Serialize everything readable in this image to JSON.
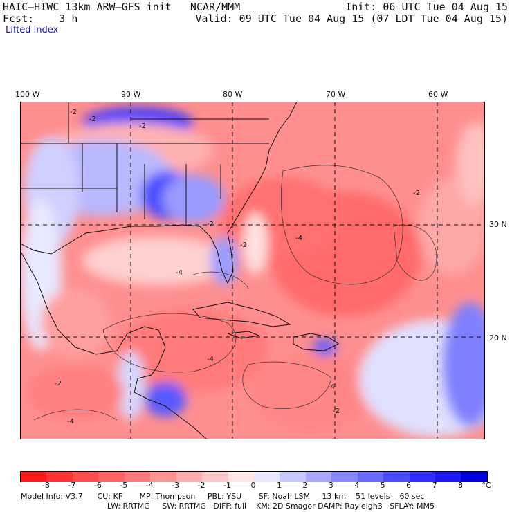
{
  "header": {
    "model_title": "HAIC–HIWC 13km ARW–GFS init   NCAR/MMM",
    "init_time": "Init: 06 UTC Tue 04 Aug 15",
    "forecast": "Fcst:    3 h",
    "valid_time": "Valid: 09 UTC Tue 04 Aug 15 (07 LDT Tue 04 Aug 15)",
    "field_name": "Lifted index"
  },
  "map": {
    "longitude_labels": [
      "100 W",
      "90 W",
      "80 W",
      "70 W",
      "60 W"
    ],
    "latitude_labels": [
      "30 N",
      "20 N"
    ],
    "contour_labels": [
      "-2",
      "-2",
      "-2",
      "-2",
      "-2",
      "-4",
      "-4",
      "-4",
      "-2",
      "-2",
      "-4",
      "-4",
      "-2"
    ]
  },
  "colorbar": {
    "tick_labels": [
      "-8",
      "-7",
      "-6",
      "-5",
      "-4",
      "-3",
      "-2",
      "-1",
      "0",
      "1",
      "2",
      "3",
      "4",
      "5",
      "6",
      "7",
      "8"
    ],
    "unit": "°C",
    "colors": [
      "#ff1a1a",
      "#ff3535",
      "#ff4d4d",
      "#ff6464",
      "#ff7a7a",
      "#ff9494",
      "#ffadad",
      "#ffc8c8",
      "#ffe6e6",
      "#e6e6ff",
      "#c8c8ff",
      "#a8a8ff",
      "#8888ff",
      "#6a6aff",
      "#4c4cff",
      "#2e2eff",
      "#1a1aee",
      "#0000dd"
    ]
  },
  "model_info": {
    "line1": "Model Info: V3.7      CU: KF       MP: Thompson     PBL: YSU       SF: Noah LSM     13 km    51 levels    60 sec",
    "line2": "LW: RRTMG     SW: RRTMG   DIFF: full    KM: 2D Smagor DAMP: Rayleigh3   SFLAY: MM5"
  }
}
